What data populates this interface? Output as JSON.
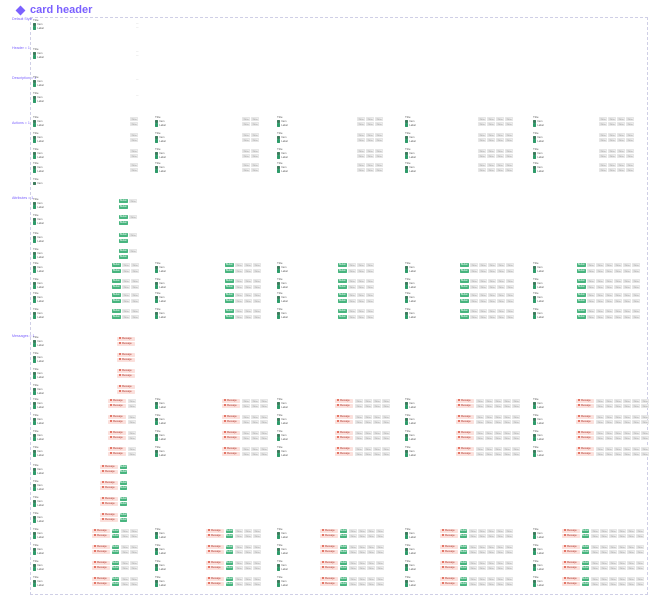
{
  "header": {
    "title": "card header",
    "icon": "component-diamond-icon",
    "accent": "#7b61ff"
  },
  "sections": [
    {
      "label": "Default Style"
    },
    {
      "label": "Header = 1"
    },
    {
      "label": "Description = 1"
    },
    {
      "label": "Actions = 1"
    },
    {
      "label": "Attributes = 1"
    },
    {
      "label": "Messages = 1"
    }
  ],
  "card": {
    "title": "Title",
    "subtitle": "Subtitle",
    "item_a": "Item",
    "item_b": "Label",
    "value": "Value",
    "button": "Button",
    "label": "Label",
    "message": "Message",
    "dash": "—"
  },
  "colors": {
    "button_green": "#48b57f",
    "message_bg": "#fbe0dc",
    "message_text": "#b23a30",
    "frame": "#cfcfe6"
  }
}
